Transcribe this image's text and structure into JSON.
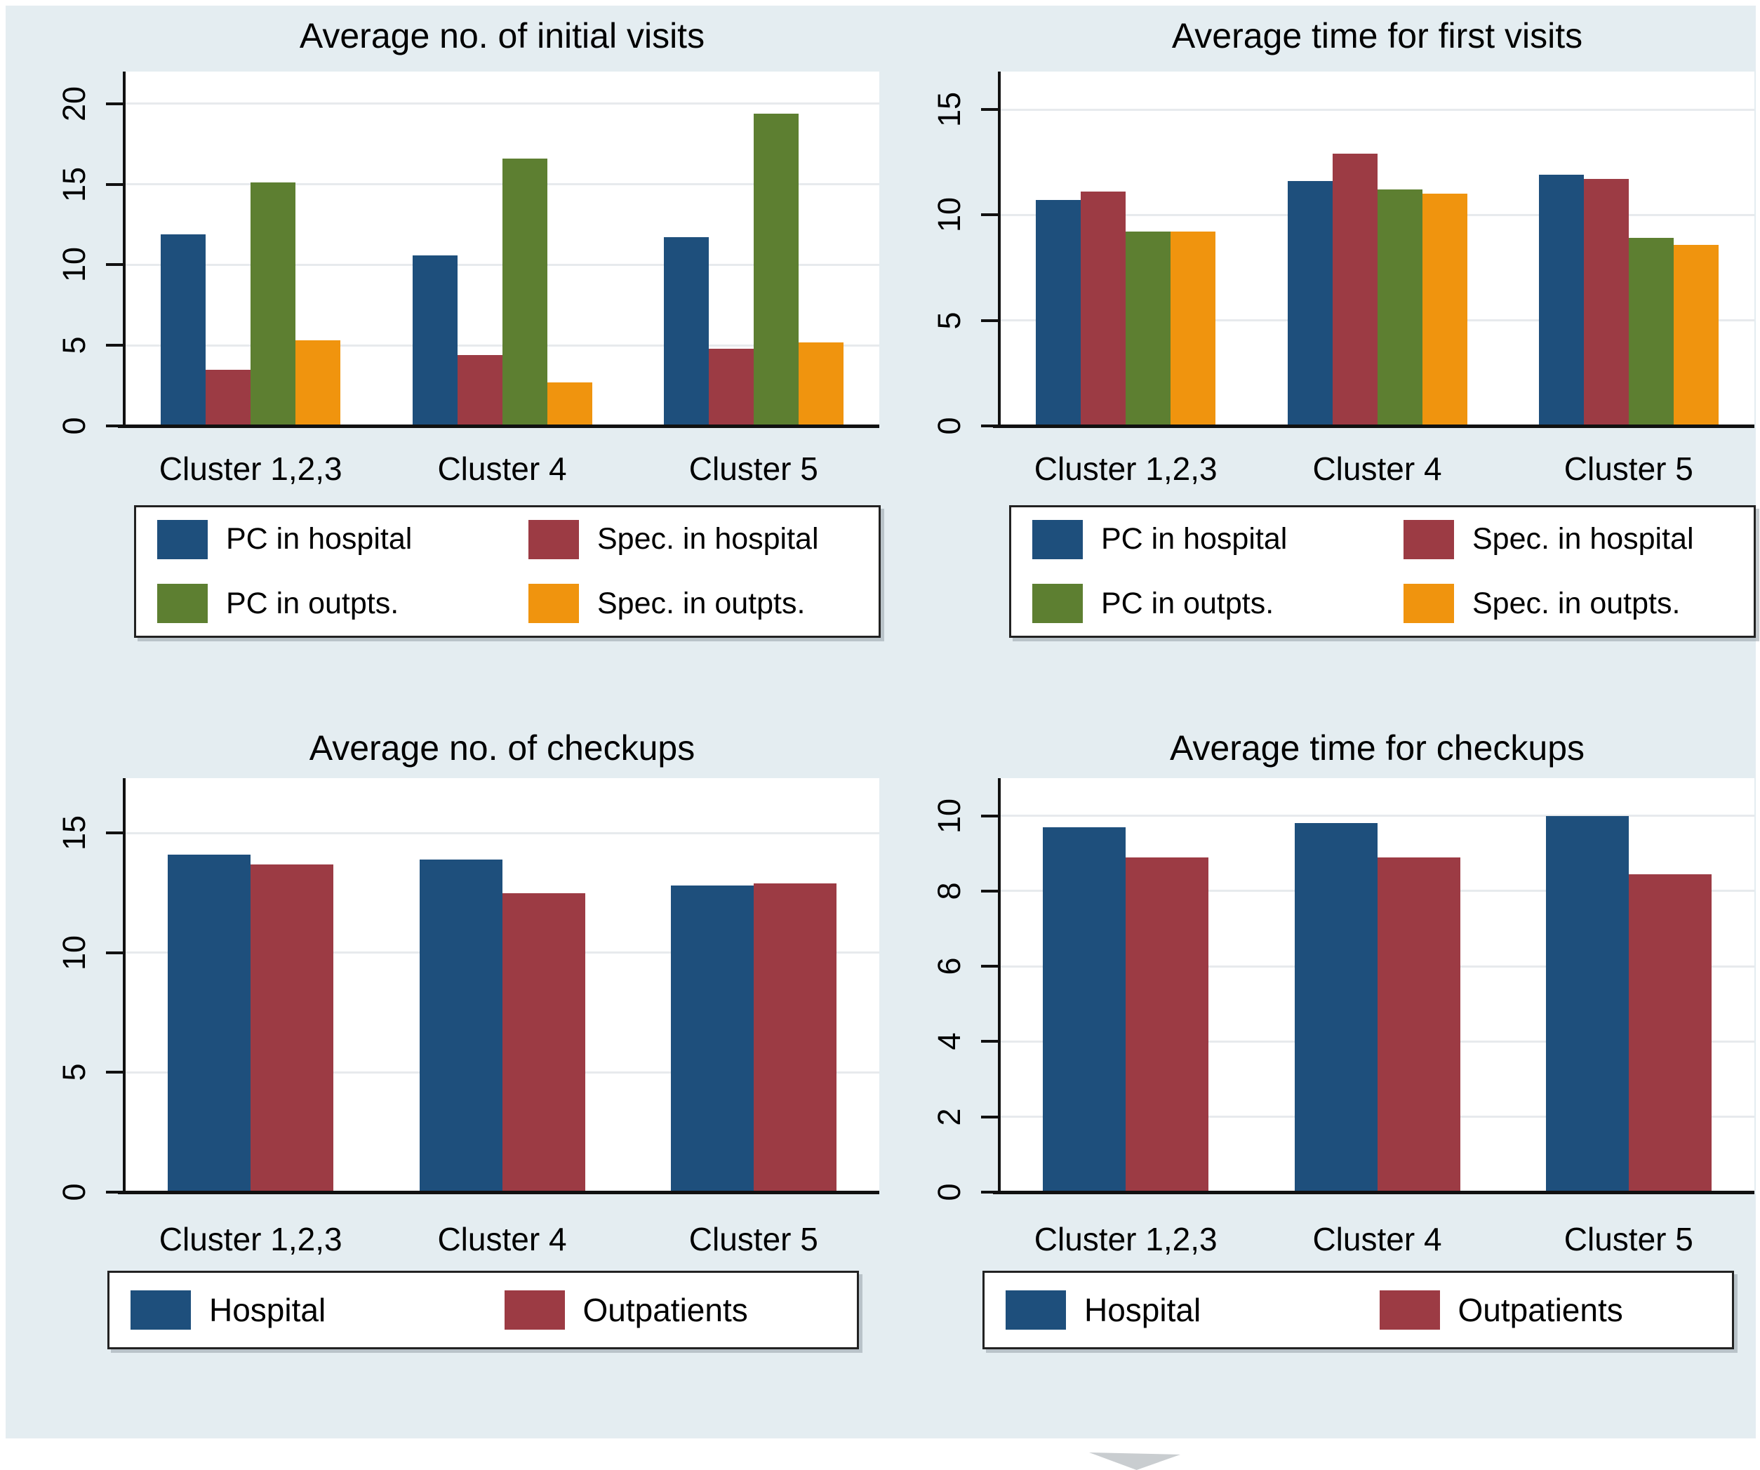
{
  "figure": {
    "background": "#e4edf1",
    "plot_background": "#ffffff",
    "grid_color": "#e7eaed",
    "axis_color": "#111111",
    "watermark_color": "#c9cdd0"
  },
  "chart_data": [
    {
      "type": "bar",
      "title": "Average no. of initial visits",
      "categories": [
        "Cluster 1,2,3",
        "Cluster 4",
        "Cluster 5"
      ],
      "series": [
        {
          "name": "PC in hospital",
          "color": "#1e4f7c",
          "values": [
            11.9,
            10.6,
            11.7
          ]
        },
        {
          "name": "Spec. in hospital",
          "color": "#9c3b44",
          "values": [
            3.5,
            4.4,
            4.8
          ]
        },
        {
          "name": "PC in outpts.",
          "color": "#5d7f31",
          "values": [
            15.1,
            16.6,
            19.4
          ]
        },
        {
          "name": "Spec. in outpts.",
          "color": "#f0940e",
          "values": [
            5.3,
            2.7,
            5.2
          ]
        }
      ],
      "xlabel": "",
      "ylabel": "",
      "yticks": [
        0,
        5,
        10,
        15,
        20
      ],
      "ylim": [
        0,
        22
      ],
      "grid": true,
      "legend_position": "bottom",
      "legend_columns": 2
    },
    {
      "type": "bar",
      "title": "Average time for first visits",
      "categories": [
        "Cluster 1,2,3",
        "Cluster 4",
        "Cluster 5"
      ],
      "series": [
        {
          "name": "PC in hospital",
          "color": "#1e4f7c",
          "values": [
            10.7,
            11.6,
            11.9
          ]
        },
        {
          "name": "Spec. in hospital",
          "color": "#9c3b44",
          "values": [
            11.1,
            12.9,
            11.7
          ]
        },
        {
          "name": "PC in outpts.",
          "color": "#5d7f31",
          "values": [
            9.2,
            11.2,
            8.9
          ]
        },
        {
          "name": "Spec. in outpts.",
          "color": "#f0940e",
          "values": [
            9.2,
            11.0,
            8.6
          ]
        }
      ],
      "xlabel": "",
      "ylabel": "",
      "yticks": [
        0,
        5,
        10,
        15
      ],
      "ylim": [
        0,
        16.8
      ],
      "grid": true,
      "legend_position": "bottom",
      "legend_columns": 2
    },
    {
      "type": "bar",
      "title": "Average no. of checkups",
      "categories": [
        "Cluster 1,2,3",
        "Cluster 4",
        "Cluster 5"
      ],
      "series": [
        {
          "name": "Hospital",
          "color": "#1e4f7c",
          "values": [
            14.1,
            13.9,
            12.8
          ]
        },
        {
          "name": "Outpatients",
          "color": "#9c3b44",
          "values": [
            13.7,
            12.5,
            12.9
          ]
        }
      ],
      "xlabel": "",
      "ylabel": "",
      "yticks": [
        0,
        5,
        10,
        15
      ],
      "ylim": [
        0,
        17.3
      ],
      "grid": true,
      "legend_position": "bottom",
      "legend_columns": 2
    },
    {
      "type": "bar",
      "title": "Average time for checkups",
      "categories": [
        "Cluster 1,2,3",
        "Cluster 4",
        "Cluster 5"
      ],
      "series": [
        {
          "name": "Hospital",
          "color": "#1e4f7c",
          "values": [
            9.7,
            9.8,
            10.0
          ]
        },
        {
          "name": "Outpatients",
          "color": "#9c3b44",
          "values": [
            8.9,
            8.9,
            8.45
          ]
        }
      ],
      "xlabel": "",
      "ylabel": "",
      "yticks": [
        0,
        2,
        4,
        6,
        8,
        10
      ],
      "ylim": [
        0,
        11
      ],
      "grid": true,
      "legend_position": "bottom",
      "legend_columns": 2
    }
  ]
}
